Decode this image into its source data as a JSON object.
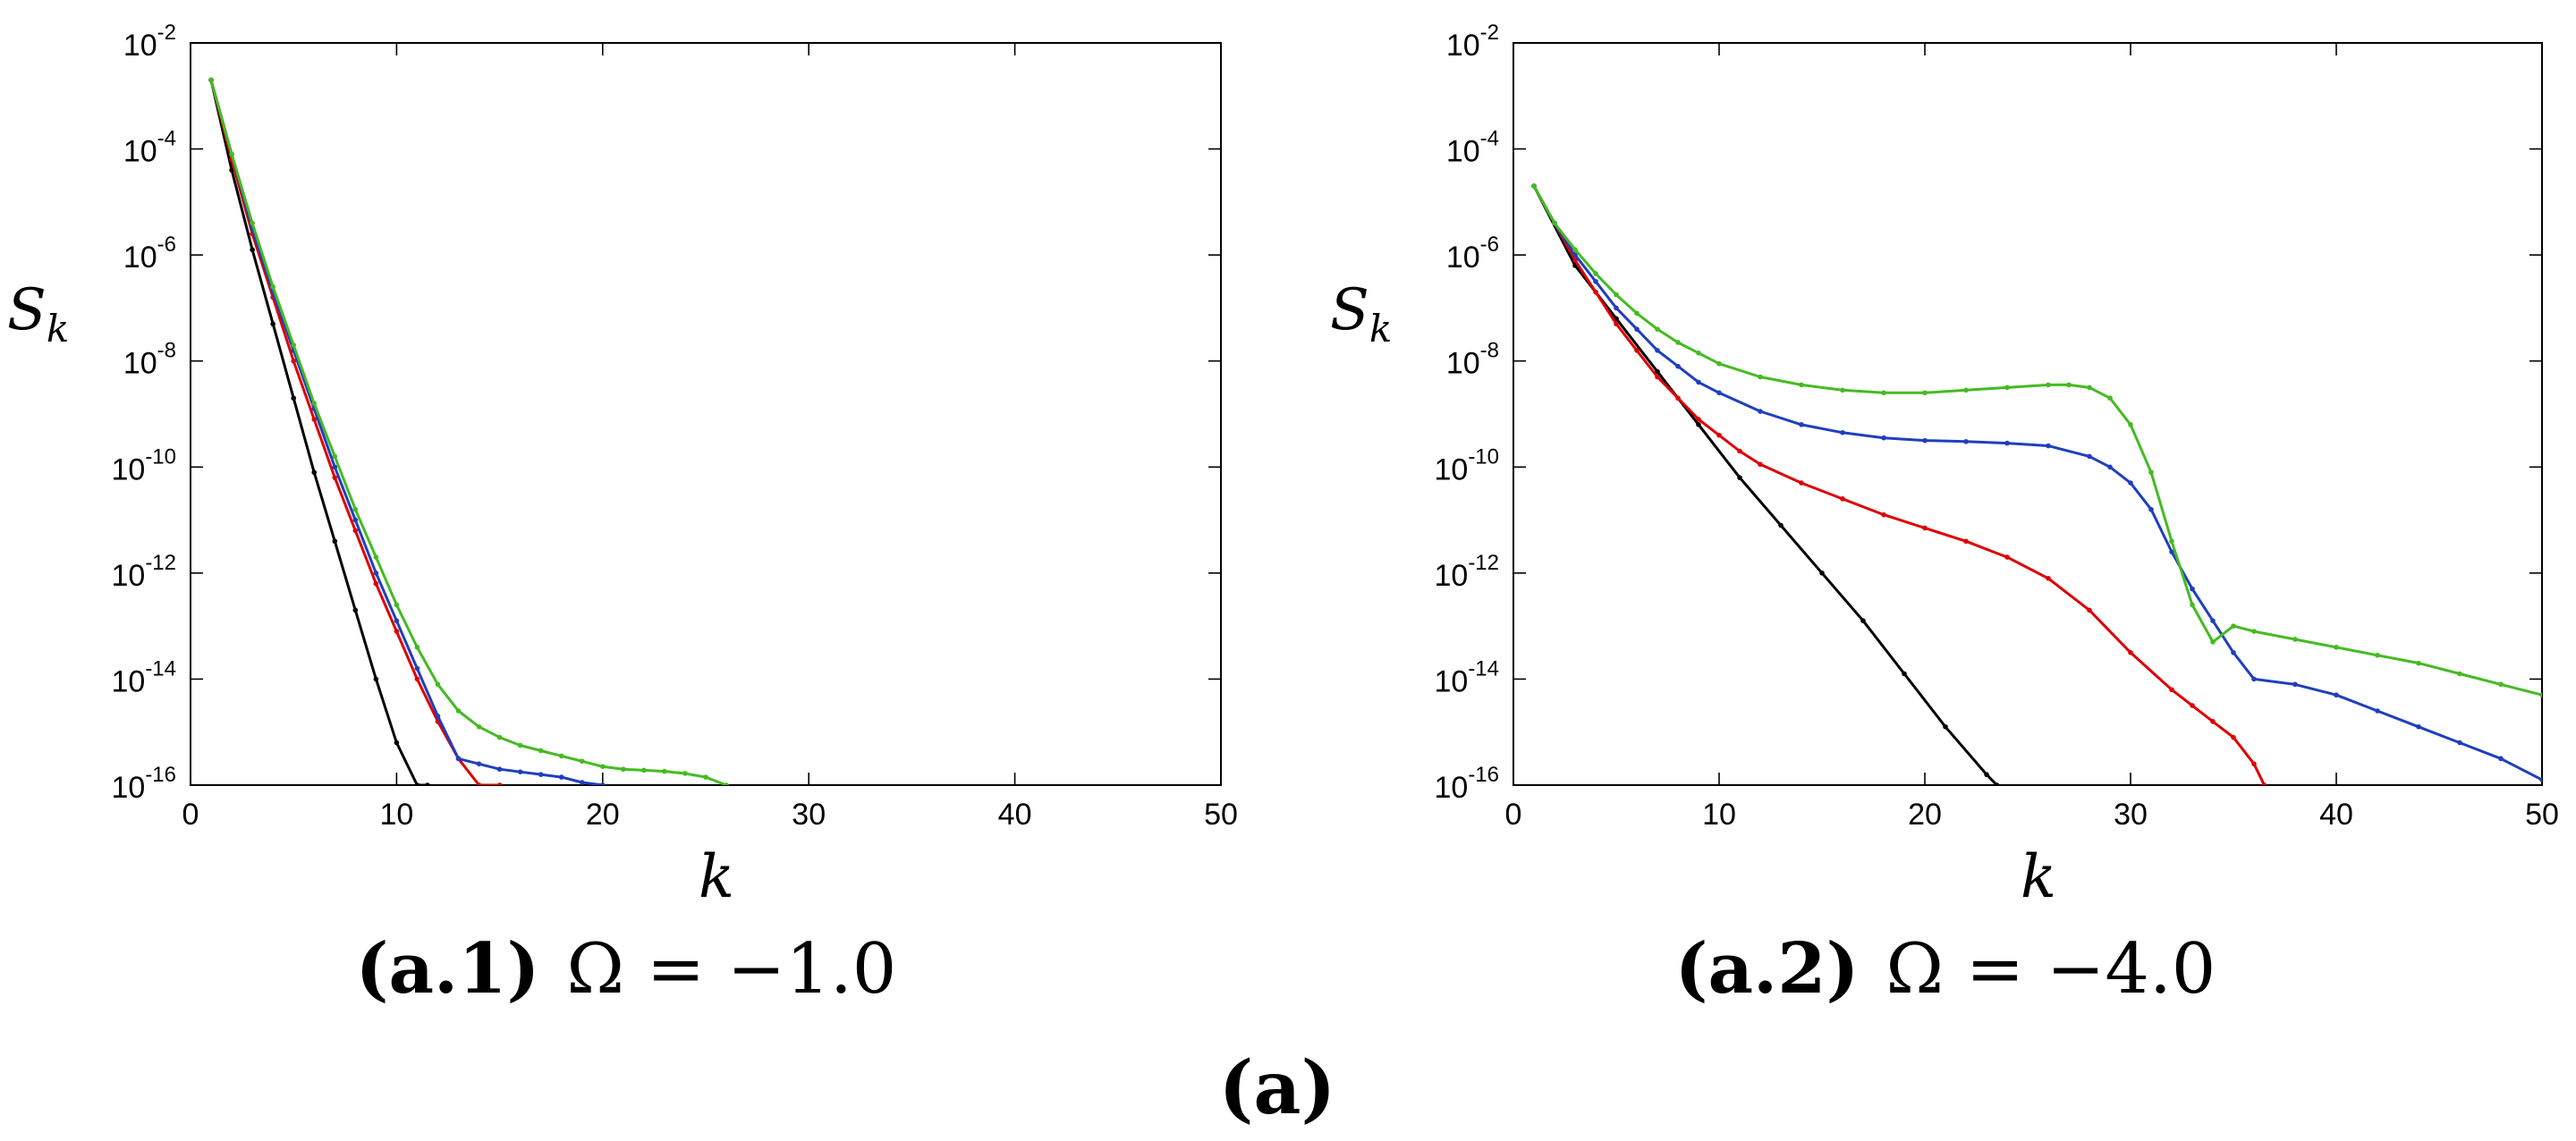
{
  "figure_label": "(a)",
  "chart_data": [
    {
      "type": "line",
      "caption_label": "(a.1)",
      "caption_text": "Ω = −1.0",
      "xlabel": "k",
      "ylabel_main": "S",
      "ylabel_sub": "k",
      "xlim": [
        0,
        50
      ],
      "ylim_exp": [
        -16,
        -2
      ],
      "yscale": "log",
      "x_ticks": [
        "0",
        "10",
        "20",
        "30",
        "40",
        "50"
      ],
      "y_tick_exps": [
        "-2",
        "-4",
        "-6",
        "-8",
        "-10",
        "-12",
        "-14",
        "-16"
      ],
      "grid": false,
      "series": [
        {
          "color": "#000000",
          "x": [
            1,
            2,
            3,
            4,
            5,
            6,
            7,
            8,
            9,
            10,
            11,
            11.5
          ],
          "y_exp": [
            -2.7,
            -4.4,
            -5.9,
            -7.3,
            -8.7,
            -10.1,
            -11.4,
            -12.7,
            -14.0,
            -15.2,
            -16.0,
            -16.0
          ]
        },
        {
          "color": "#dd0000",
          "x": [
            1,
            2,
            3,
            4,
            5,
            6,
            7,
            8,
            9,
            10,
            11,
            12,
            13,
            14,
            15
          ],
          "y_exp": [
            -2.7,
            -4.2,
            -5.6,
            -6.8,
            -8.0,
            -9.1,
            -10.2,
            -11.2,
            -12.2,
            -13.1,
            -14.0,
            -14.8,
            -15.5,
            -16.0,
            -16.0
          ]
        },
        {
          "color": "#1f3fbf",
          "x": [
            1,
            2,
            3,
            4,
            5,
            6,
            7,
            8,
            9,
            10,
            11,
            12,
            13,
            14,
            15,
            16,
            17,
            18,
            19,
            20
          ],
          "y_exp": [
            -2.7,
            -4.1,
            -5.5,
            -6.7,
            -7.8,
            -8.9,
            -10.0,
            -11.0,
            -12.0,
            -12.9,
            -13.8,
            -14.7,
            -15.5,
            -15.6,
            -15.7,
            -15.75,
            -15.8,
            -15.85,
            -15.95,
            -16.0
          ]
        },
        {
          "color": "#44bb22",
          "x": [
            1,
            2,
            3,
            4,
            5,
            6,
            7,
            8,
            9,
            10,
            11,
            12,
            13,
            14,
            15,
            16,
            17,
            18,
            19,
            20,
            21,
            22,
            23,
            24,
            25,
            26
          ],
          "y_exp": [
            -2.7,
            -4.1,
            -5.4,
            -6.6,
            -7.7,
            -8.8,
            -9.8,
            -10.8,
            -11.7,
            -12.6,
            -13.4,
            -14.1,
            -14.6,
            -14.9,
            -15.1,
            -15.25,
            -15.35,
            -15.45,
            -15.55,
            -15.65,
            -15.7,
            -15.72,
            -15.74,
            -15.78,
            -15.85,
            -16.0
          ]
        }
      ]
    },
    {
      "type": "line",
      "caption_label": "(a.2)",
      "caption_text": "Ω = −4.0",
      "xlabel": "k",
      "ylabel_main": "S",
      "ylabel_sub": "k",
      "xlim": [
        0,
        50
      ],
      "ylim_exp": [
        -16,
        -2
      ],
      "yscale": "log",
      "x_ticks": [
        "0",
        "10",
        "20",
        "30",
        "40",
        "50"
      ],
      "y_tick_exps": [
        "-2",
        "-4",
        "-6",
        "-8",
        "-10",
        "-12",
        "-14",
        "-16"
      ],
      "grid": false,
      "series": [
        {
          "color": "#000000",
          "x": [
            1,
            3,
            5,
            7,
            9,
            11,
            13,
            15,
            17,
            19,
            21,
            23,
            23.5
          ],
          "y_exp": [
            -4.7,
            -6.2,
            -7.2,
            -8.2,
            -9.2,
            -10.2,
            -11.1,
            -12.0,
            -12.9,
            -13.9,
            -14.9,
            -15.8,
            -16.0
          ]
        },
        {
          "color": "#dd0000",
          "x": [
            1,
            2,
            3,
            4,
            5,
            6,
            7,
            8,
            9,
            10,
            11,
            12,
            14,
            16,
            18,
            20,
            22,
            24,
            26,
            28,
            30,
            32,
            33,
            34,
            35,
            36,
            36.5
          ],
          "y_exp": [
            -4.7,
            -5.4,
            -6.1,
            -6.7,
            -7.3,
            -7.8,
            -8.3,
            -8.7,
            -9.1,
            -9.4,
            -9.7,
            -9.95,
            -10.3,
            -10.6,
            -10.9,
            -11.15,
            -11.4,
            -11.7,
            -12.1,
            -12.7,
            -13.5,
            -14.2,
            -14.5,
            -14.8,
            -15.1,
            -15.6,
            -16.0
          ]
        },
        {
          "color": "#1f3fbf",
          "x": [
            1,
            2,
            3,
            4,
            5,
            6,
            7,
            8,
            9,
            10,
            12,
            14,
            16,
            18,
            20,
            22,
            24,
            26,
            28,
            29,
            30,
            31,
            32,
            33,
            34,
            35,
            36,
            38,
            40,
            42,
            44,
            46,
            48,
            50
          ],
          "y_exp": [
            -4.7,
            -5.4,
            -6.0,
            -6.5,
            -7.0,
            -7.4,
            -7.8,
            -8.1,
            -8.4,
            -8.6,
            -8.95,
            -9.2,
            -9.35,
            -9.45,
            -9.5,
            -9.52,
            -9.55,
            -9.6,
            -9.8,
            -10.0,
            -10.3,
            -10.8,
            -11.6,
            -12.3,
            -12.9,
            -13.5,
            -14.0,
            -14.1,
            -14.3,
            -14.6,
            -14.9,
            -15.2,
            -15.5,
            -15.9
          ]
        },
        {
          "color": "#44bb22",
          "x": [
            1,
            2,
            3,
            4,
            5,
            6,
            7,
            8,
            9,
            10,
            12,
            14,
            16,
            18,
            20,
            22,
            24,
            26,
            27,
            28,
            29,
            30,
            31,
            32,
            33,
            34,
            35,
            36,
            38,
            40,
            42,
            44,
            46,
            48,
            50
          ],
          "y_exp": [
            -4.7,
            -5.4,
            -5.9,
            -6.35,
            -6.75,
            -7.1,
            -7.4,
            -7.65,
            -7.85,
            -8.05,
            -8.3,
            -8.45,
            -8.55,
            -8.6,
            -8.6,
            -8.55,
            -8.5,
            -8.45,
            -8.45,
            -8.5,
            -8.7,
            -9.2,
            -10.1,
            -11.4,
            -12.6,
            -13.3,
            -13.0,
            -13.1,
            -13.25,
            -13.4,
            -13.55,
            -13.7,
            -13.9,
            -14.1,
            -14.3
          ]
        }
      ]
    }
  ]
}
